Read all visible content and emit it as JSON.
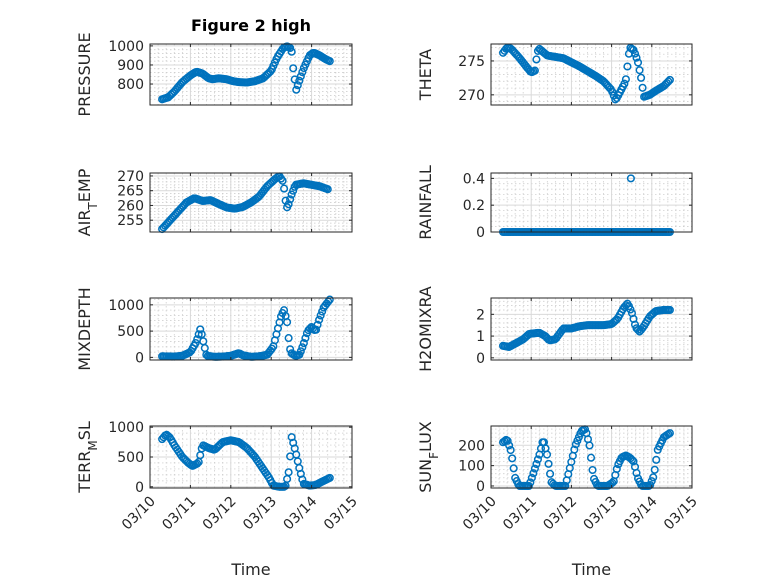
{
  "figure": {
    "title": "Figure 2 high",
    "colors": {
      "marker": "#0072BD",
      "axis": "#262626",
      "grid": "#d9d9d9"
    }
  },
  "chart_data": [
    {
      "type": "scatter",
      "ylabel": "PRESSURE",
      "xlabel": "",
      "ylim": [
        690,
        1010
      ],
      "yticks": [
        800,
        900,
        1000
      ],
      "yticklabels": [
        "800",
        "900",
        "1000"
      ],
      "grid": true,
      "keys": [
        [
          0.3,
          720
        ],
        [
          0.45,
          730
        ],
        [
          0.6,
          760
        ],
        [
          0.8,
          810
        ],
        [
          1.0,
          845
        ],
        [
          1.15,
          865
        ],
        [
          1.3,
          855
        ],
        [
          1.45,
          830
        ],
        [
          1.55,
          825
        ],
        [
          1.7,
          830
        ],
        [
          1.9,
          825
        ],
        [
          2.05,
          815
        ],
        [
          2.2,
          810
        ],
        [
          2.4,
          808
        ],
        [
          2.6,
          815
        ],
        [
          2.8,
          830
        ],
        [
          3.0,
          870
        ],
        [
          3.15,
          940
        ],
        [
          3.3,
          990
        ],
        [
          3.4,
          998
        ],
        [
          3.5,
          985
        ],
        [
          3.55,
          870
        ],
        [
          3.62,
          770
        ],
        [
          3.7,
          820
        ],
        [
          3.8,
          880
        ],
        [
          3.95,
          950
        ],
        [
          4.05,
          965
        ],
        [
          4.2,
          950
        ],
        [
          4.35,
          930
        ],
        [
          4.45,
          920
        ]
      ]
    },
    {
      "type": "scatter",
      "ylabel": "THETA",
      "xlabel": "",
      "ylim": [
        268.5,
        277.5
      ],
      "yticks": [
        270,
        275
      ],
      "yticklabels": [
        "270",
        "275"
      ],
      "grid": true,
      "keys": [
        [
          0.3,
          276.2
        ],
        [
          0.4,
          277
        ],
        [
          0.5,
          276.8
        ],
        [
          0.7,
          275.5
        ],
        [
          0.9,
          274
        ],
        [
          1.0,
          273.3
        ],
        [
          1.1,
          273.6
        ],
        [
          1.15,
          276.3
        ],
        [
          1.2,
          276.8
        ],
        [
          1.4,
          275.8
        ],
        [
          1.6,
          275.6
        ],
        [
          1.8,
          275.4
        ],
        [
          2.0,
          274.8
        ],
        [
          2.2,
          274.2
        ],
        [
          2.4,
          273.5
        ],
        [
          2.6,
          272.8
        ],
        [
          2.8,
          272
        ],
        [
          3.0,
          270.7
        ],
        [
          3.1,
          269.2
        ],
        [
          3.2,
          270.3
        ],
        [
          3.35,
          272
        ],
        [
          3.45,
          277
        ],
        [
          3.55,
          276.6
        ],
        [
          3.65,
          275
        ],
        [
          3.75,
          272
        ],
        [
          3.8,
          269.7
        ],
        [
          3.95,
          270
        ],
        [
          4.1,
          270.6
        ],
        [
          4.3,
          271.3
        ],
        [
          4.45,
          272.2
        ]
      ]
    },
    {
      "type": "scatter",
      "ylabel": "AIR_TEMP",
      "xlabel": "",
      "ylim": [
        251,
        271
      ],
      "yticks": [
        255,
        260,
        265,
        270
      ],
      "yticklabels": [
        "255",
        "260",
        "265",
        "270"
      ],
      "grid": true,
      "keys": [
        [
          0.3,
          252
        ],
        [
          0.5,
          255
        ],
        [
          0.7,
          258
        ],
        [
          0.9,
          261
        ],
        [
          1.1,
          262.5
        ],
        [
          1.3,
          261.5
        ],
        [
          1.5,
          261.8
        ],
        [
          1.7,
          260.5
        ],
        [
          1.9,
          259.3
        ],
        [
          2.1,
          258.9
        ],
        [
          2.3,
          259.5
        ],
        [
          2.5,
          261
        ],
        [
          2.7,
          263
        ],
        [
          2.9,
          266.5
        ],
        [
          3.1,
          269
        ],
        [
          3.2,
          270
        ],
        [
          3.3,
          268
        ],
        [
          3.35,
          262
        ],
        [
          3.4,
          259
        ],
        [
          3.5,
          263.5
        ],
        [
          3.6,
          267
        ],
        [
          3.8,
          267.5
        ],
        [
          4.0,
          267
        ],
        [
          4.2,
          266.5
        ],
        [
          4.4,
          265.5
        ]
      ]
    },
    {
      "type": "scatter",
      "ylabel": "RAINFALL",
      "xlabel": "",
      "ylim": [
        0,
        0.44
      ],
      "yticks": [
        0,
        0.2,
        0.4
      ],
      "yticklabels": [
        "0",
        "0.2",
        "0.4"
      ],
      "grid": true,
      "keys": [
        [
          0.3,
          0
        ],
        [
          4.45,
          0
        ]
      ],
      "extra": [
        [
          3.48,
          0.4
        ]
      ]
    },
    {
      "type": "scatter",
      "ylabel": "MIXDEPTH",
      "xlabel": "",
      "ylim": [
        -50,
        1130
      ],
      "yticks": [
        0,
        500,
        1000
      ],
      "yticklabels": [
        "0",
        "500",
        "1000"
      ],
      "grid": true,
      "keys": [
        [
          0.3,
          20
        ],
        [
          0.6,
          15
        ],
        [
          0.8,
          30
        ],
        [
          1.0,
          100
        ],
        [
          1.15,
          300
        ],
        [
          1.25,
          550
        ],
        [
          1.32,
          300
        ],
        [
          1.4,
          30
        ],
        [
          1.6,
          10
        ],
        [
          1.8,
          15
        ],
        [
          2.0,
          30
        ],
        [
          2.2,
          80
        ],
        [
          2.3,
          40
        ],
        [
          2.5,
          10
        ],
        [
          2.7,
          20
        ],
        [
          2.9,
          50
        ],
        [
          3.05,
          200
        ],
        [
          3.15,
          500
        ],
        [
          3.25,
          800
        ],
        [
          3.32,
          900
        ],
        [
          3.4,
          650
        ],
        [
          3.45,
          200
        ],
        [
          3.5,
          80
        ],
        [
          3.6,
          30
        ],
        [
          3.7,
          50
        ],
        [
          3.8,
          250
        ],
        [
          3.9,
          500
        ],
        [
          4.0,
          580
        ],
        [
          4.1,
          500
        ],
        [
          4.2,
          750
        ],
        [
          4.3,
          950
        ],
        [
          4.4,
          1050
        ],
        [
          4.45,
          1100
        ]
      ]
    },
    {
      "type": "scatter",
      "ylabel": "H2OMIXRA",
      "xlabel": "",
      "ylim": [
        -0.1,
        2.75
      ],
      "yticks": [
        0,
        1,
        2
      ],
      "yticklabels": [
        "0",
        "1",
        "2"
      ],
      "grid": true,
      "keys": [
        [
          0.3,
          0.55
        ],
        [
          0.45,
          0.5
        ],
        [
          0.6,
          0.65
        ],
        [
          0.8,
          0.85
        ],
        [
          0.95,
          1.1
        ],
        [
          1.2,
          1.15
        ],
        [
          1.35,
          1.0
        ],
        [
          1.45,
          0.8
        ],
        [
          1.6,
          0.85
        ],
        [
          1.8,
          1.35
        ],
        [
          2.0,
          1.35
        ],
        [
          2.2,
          1.45
        ],
        [
          2.4,
          1.5
        ],
        [
          2.6,
          1.5
        ],
        [
          2.8,
          1.5
        ],
        [
          3.0,
          1.55
        ],
        [
          3.15,
          1.8
        ],
        [
          3.3,
          2.3
        ],
        [
          3.4,
          2.5
        ],
        [
          3.5,
          2.1
        ],
        [
          3.6,
          1.4
        ],
        [
          3.7,
          1.2
        ],
        [
          3.8,
          1.45
        ],
        [
          3.95,
          1.9
        ],
        [
          4.1,
          2.15
        ],
        [
          4.3,
          2.2
        ],
        [
          4.45,
          2.2
        ]
      ]
    },
    {
      "type": "scatter",
      "ylabel": "TERR_MSL",
      "xlabel": "Time",
      "ylim": [
        -20,
        1020
      ],
      "yticks": [
        0,
        500,
        1000
      ],
      "yticklabels": [
        "0",
        "500",
        "1000"
      ],
      "grid": true,
      "keys": [
        [
          0.3,
          800
        ],
        [
          0.4,
          880
        ],
        [
          0.5,
          820
        ],
        [
          0.6,
          700
        ],
        [
          0.8,
          500
        ],
        [
          0.95,
          400
        ],
        [
          1.05,
          350
        ],
        [
          1.2,
          400
        ],
        [
          1.3,
          700
        ],
        [
          1.45,
          650
        ],
        [
          1.6,
          620
        ],
        [
          1.8,
          750
        ],
        [
          2.0,
          780
        ],
        [
          2.2,
          750
        ],
        [
          2.4,
          650
        ],
        [
          2.6,
          500
        ],
        [
          2.8,
          300
        ],
        [
          2.95,
          150
        ],
        [
          3.05,
          20
        ],
        [
          3.2,
          0
        ],
        [
          3.35,
          0
        ],
        [
          3.45,
          300
        ],
        [
          3.5,
          850
        ],
        [
          3.6,
          600
        ],
        [
          3.7,
          300
        ],
        [
          3.8,
          50
        ],
        [
          3.95,
          20
        ],
        [
          4.1,
          30
        ],
        [
          4.3,
          100
        ],
        [
          4.45,
          150
        ]
      ],
      "xtick_values": [
        0,
        1,
        2,
        3,
        4,
        5
      ],
      "xticklabels": [
        "03/10",
        "03/11",
        "03/12",
        "03/13",
        "03/14",
        "03/15"
      ]
    },
    {
      "type": "scatter",
      "ylabel": "SUN_FLUX",
      "xlabel": "Time",
      "ylim": [
        -10,
        295
      ],
      "yticks": [
        0,
        100,
        200
      ],
      "yticklabels": [
        "0",
        "100",
        "200"
      ],
      "grid": true,
      "keys": [
        [
          0.3,
          215
        ],
        [
          0.4,
          230
        ],
        [
          0.5,
          170
        ],
        [
          0.6,
          40
        ],
        [
          0.7,
          0
        ],
        [
          0.95,
          0
        ],
        [
          1.05,
          60
        ],
        [
          1.2,
          150
        ],
        [
          1.3,
          230
        ],
        [
          1.4,
          150
        ],
        [
          1.5,
          20
        ],
        [
          1.6,
          0
        ],
        [
          1.85,
          0
        ],
        [
          1.95,
          80
        ],
        [
          2.1,
          200
        ],
        [
          2.25,
          270
        ],
        [
          2.35,
          280
        ],
        [
          2.45,
          200
        ],
        [
          2.55,
          40
        ],
        [
          2.65,
          0
        ],
        [
          2.9,
          0
        ],
        [
          3.05,
          20
        ],
        [
          3.15,
          100
        ],
        [
          3.25,
          140
        ],
        [
          3.35,
          150
        ],
        [
          3.45,
          140
        ],
        [
          3.55,
          120
        ],
        [
          3.65,
          40
        ],
        [
          3.75,
          0
        ],
        [
          3.95,
          0
        ],
        [
          4.05,
          50
        ],
        [
          4.15,
          180
        ],
        [
          4.3,
          240
        ],
        [
          4.45,
          260
        ]
      ],
      "xtick_values": [
        0,
        1,
        2,
        3,
        4,
        5
      ],
      "xticklabels": [
        "03/10",
        "03/11",
        "03/12",
        "03/13",
        "03/14",
        "03/15"
      ]
    }
  ]
}
